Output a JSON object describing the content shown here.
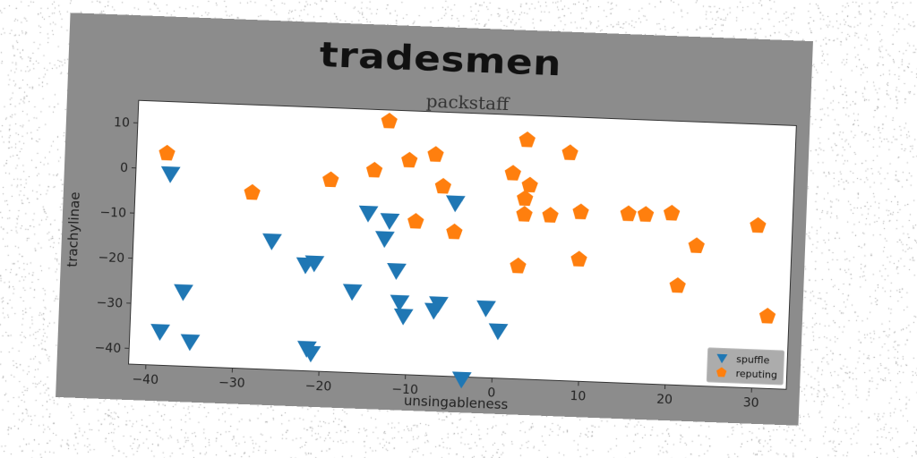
{
  "figure": {
    "suptitle": "tradesmen"
  },
  "chart_data": {
    "type": "scatter",
    "title": "packstaff",
    "xlabel": "unsingableness",
    "ylabel": "trachylinae",
    "xlim": [
      -42,
      34
    ],
    "ylim": [
      -43.5,
      15
    ],
    "xticks": [
      -40,
      -30,
      -20,
      -10,
      0,
      10,
      20,
      30
    ],
    "yticks": [
      10,
      0,
      -10,
      -20,
      -30,
      -40
    ],
    "grid": false,
    "legend_position": "bottom-right",
    "series": [
      {
        "name": "spuffle",
        "marker": "triangle-down",
        "color": "#1f77b4",
        "points": [
          [
            -38,
            -1
          ],
          [
            -36,
            -27
          ],
          [
            -35,
            -38
          ],
          [
            -38.5,
            -36
          ],
          [
            -26,
            -15
          ],
          [
            -22,
            -20
          ],
          [
            -21,
            -19.5
          ],
          [
            -21.5,
            -38.5
          ],
          [
            -21,
            -39.5
          ],
          [
            -16.5,
            -25.5
          ],
          [
            -15,
            -8
          ],
          [
            -12.5,
            -9.5
          ],
          [
            -13,
            -13.5
          ],
          [
            -11.5,
            -20.5
          ],
          [
            -11,
            -27.5
          ],
          [
            -10.5,
            -30.5
          ],
          [
            -7,
            -29
          ],
          [
            -6.5,
            -27.5
          ],
          [
            -5,
            -5
          ],
          [
            -3.5,
            -44
          ],
          [
            -1,
            -28
          ],
          [
            0.5,
            -33
          ]
        ]
      },
      {
        "name": "reputing",
        "marker": "pentagon",
        "color": "#ff7f0e",
        "points": [
          [
            -38.5,
            3.5
          ],
          [
            -28.5,
            -4.5
          ],
          [
            -19.5,
            -1
          ],
          [
            -14.5,
            1.5
          ],
          [
            -13,
            12.5
          ],
          [
            -10.5,
            4
          ],
          [
            -9.5,
            -9.5
          ],
          [
            -7.5,
            5.5
          ],
          [
            -6.5,
            -1.5
          ],
          [
            -5,
            -11.5
          ],
          [
            1.5,
            2
          ],
          [
            2.5,
            -18.5
          ],
          [
            3,
            9.5
          ],
          [
            3,
            -3.5
          ],
          [
            3,
            -7
          ],
          [
            3.5,
            -0.5
          ],
          [
            6,
            -7
          ],
          [
            8,
            7
          ],
          [
            9.5,
            -6
          ],
          [
            9.5,
            -16.5
          ],
          [
            15,
            -6
          ],
          [
            17,
            -6
          ],
          [
            20,
            -5.5
          ],
          [
            21,
            -21.5
          ],
          [
            23,
            -12.5
          ],
          [
            30,
            -7.5
          ],
          [
            31.5,
            -27.5
          ]
        ]
      }
    ]
  }
}
